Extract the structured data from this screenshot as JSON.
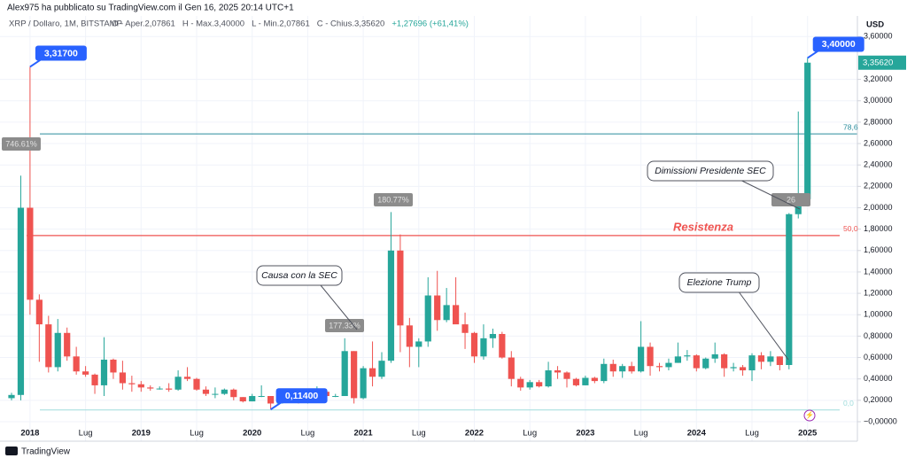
{
  "header": "Alex975 ha pubblicato su TradingView.com il Gen 16, 2025 20:14 UTC+1",
  "footer": "TradingView",
  "chart_data": {
    "type": "candlestick",
    "title": "XRP / Dollaro, 1M, BITSTAMP",
    "legend_items": [
      "O - Aper.2,07861",
      "H - Max.3,40000",
      "L - Min.2,07861",
      "C - Chius.3,35620",
      "+1,27696 (+61,41%)"
    ],
    "y_axis_label": "USD",
    "up_color": "#26a69a",
    "down_color": "#ef5350",
    "categories": [
      null,
      null,
      "2018",
      null,
      null,
      null,
      null,
      null,
      "Lug",
      null,
      null,
      null,
      null,
      null,
      "2019",
      null,
      null,
      null,
      null,
      null,
      "Lug",
      null,
      null,
      null,
      null,
      null,
      "2020",
      null,
      null,
      null,
      null,
      null,
      "Lug",
      null,
      null,
      null,
      null,
      null,
      "2021",
      null,
      null,
      null,
      null,
      null,
      "Lug",
      null,
      null,
      null,
      null,
      null,
      "2022",
      null,
      null,
      null,
      null,
      null,
      "Lug",
      null,
      null,
      null,
      null,
      null,
      "2023",
      null,
      null,
      null,
      null,
      null,
      "Lug",
      null,
      null,
      null,
      null,
      null,
      "2024",
      null,
      null,
      null,
      null,
      null,
      "Lug",
      null,
      null,
      null,
      null,
      null,
      "2025"
    ],
    "open": [
      0.22,
      0.25,
      2.0,
      1.14,
      0.91,
      0.51,
      0.83,
      0.61,
      0.47,
      0.44,
      0.34,
      0.58,
      0.46,
      0.36,
      0.35,
      0.32,
      0.31,
      0.31,
      0.3,
      0.42,
      0.4,
      0.3,
      0.26,
      0.26,
      0.3,
      0.23,
      0.19,
      0.24,
      0.24,
      0.17,
      0.21,
      0.2,
      0.18,
      0.25,
      0.28,
      0.24,
      0.24,
      0.66,
      0.22,
      0.5,
      0.42,
      0.57,
      1.6,
      0.9,
      0.7,
      0.75,
      1.18,
      0.95,
      1.09,
      0.91,
      0.83,
      0.61,
      0.78,
      0.82,
      0.6,
      0.4,
      0.32,
      0.37,
      0.33,
      0.48,
      0.46,
      0.4,
      0.34,
      0.41,
      0.38,
      0.54,
      0.47,
      0.52,
      0.47,
      0.7,
      0.52,
      0.51,
      0.55,
      0.61,
      0.62,
      0.5,
      0.59,
      0.63,
      0.5,
      0.51,
      0.48,
      0.62,
      0.56,
      0.61,
      0.53,
      1.94,
      2.08
    ],
    "high": [
      0.27,
      2.3,
      3.317,
      1.19,
      0.99,
      0.96,
      0.88,
      0.7,
      0.52,
      0.45,
      0.79,
      0.59,
      0.57,
      0.43,
      0.38,
      0.34,
      0.33,
      0.36,
      0.48,
      0.51,
      0.41,
      0.33,
      0.32,
      0.31,
      0.31,
      0.23,
      0.26,
      0.34,
      0.24,
      0.22,
      0.22,
      0.21,
      0.3,
      0.33,
      0.29,
      0.26,
      0.78,
      0.66,
      0.52,
      0.75,
      0.65,
      1.96,
      1.75,
      0.97,
      0.78,
      1.35,
      1.41,
      1.25,
      1.35,
      1.02,
      0.84,
      0.91,
      0.87,
      0.84,
      0.66,
      0.42,
      0.39,
      0.39,
      0.56,
      0.52,
      0.47,
      0.41,
      0.43,
      0.42,
      0.59,
      0.58,
      0.54,
      0.56,
      0.94,
      0.74,
      0.55,
      0.59,
      0.74,
      0.67,
      0.63,
      0.6,
      0.74,
      0.64,
      0.55,
      0.53,
      0.64,
      0.65,
      0.66,
      0.61,
      1.95,
      2.9,
      3.4
    ],
    "low": [
      0.2,
      0.2,
      1.0,
      0.56,
      0.46,
      0.47,
      0.57,
      0.44,
      0.42,
      0.26,
      0.24,
      0.4,
      0.3,
      0.28,
      0.28,
      0.29,
      0.3,
      0.28,
      0.29,
      0.38,
      0.29,
      0.24,
      0.22,
      0.25,
      0.2,
      0.18,
      0.19,
      0.23,
      0.114,
      0.17,
      0.18,
      0.17,
      0.17,
      0.24,
      0.22,
      0.23,
      0.24,
      0.17,
      0.21,
      0.33,
      0.4,
      0.55,
      0.65,
      0.51,
      0.51,
      0.7,
      0.85,
      0.93,
      0.92,
      0.68,
      0.55,
      0.58,
      0.69,
      0.59,
      0.33,
      0.29,
      0.3,
      0.32,
      0.32,
      0.4,
      0.32,
      0.33,
      0.34,
      0.36,
      0.36,
      0.42,
      0.41,
      0.45,
      0.46,
      0.43,
      0.47,
      0.48,
      0.55,
      0.57,
      0.47,
      0.49,
      0.55,
      0.42,
      0.47,
      0.43,
      0.38,
      0.49,
      0.52,
      0.48,
      0.49,
      1.9,
      2.08
    ],
    "close": [
      0.25,
      2.0,
      1.14,
      0.91,
      0.51,
      0.83,
      0.61,
      0.47,
      0.44,
      0.34,
      0.58,
      0.46,
      0.36,
      0.35,
      0.32,
      0.31,
      0.31,
      0.3,
      0.42,
      0.4,
      0.3,
      0.26,
      0.26,
      0.3,
      0.23,
      0.19,
      0.24,
      0.24,
      0.17,
      0.21,
      0.2,
      0.18,
      0.25,
      0.28,
      0.24,
      0.24,
      0.66,
      0.22,
      0.5,
      0.42,
      0.57,
      1.6,
      0.9,
      0.7,
      0.75,
      1.18,
      0.95,
      1.09,
      0.91,
      0.83,
      0.61,
      0.78,
      0.82,
      0.6,
      0.4,
      0.32,
      0.37,
      0.33,
      0.48,
      0.46,
      0.4,
      0.34,
      0.41,
      0.38,
      0.54,
      0.47,
      0.52,
      0.47,
      0.7,
      0.52,
      0.51,
      0.55,
      0.61,
      0.62,
      0.5,
      0.59,
      0.63,
      0.5,
      0.51,
      0.48,
      0.62,
      0.56,
      0.61,
      0.53,
      1.94,
      2.08,
      3.3562
    ],
    "ylim": [
      -0.116,
      3.793
    ],
    "yticks": [
      {
        "value": 0,
        "label": "−0,00000"
      },
      {
        "value": 0.2,
        "label": "0,20000"
      },
      {
        "value": 0.4,
        "label": "0,40000"
      },
      {
        "value": 0.6,
        "label": "0,60000"
      },
      {
        "value": 0.8,
        "label": "0,80000"
      },
      {
        "value": 1,
        "label": "1,00000"
      },
      {
        "value": 1.2,
        "label": "1,20000"
      },
      {
        "value": 1.4,
        "label": "1,40000"
      },
      {
        "value": 1.6,
        "label": "1,60000"
      },
      {
        "value": 1.8,
        "label": "1,80000"
      },
      {
        "value": 2,
        "label": "2,00000"
      },
      {
        "value": 2.2,
        "label": "2,20000"
      },
      {
        "value": 2.4,
        "label": "2,40000"
      },
      {
        "value": 2.6,
        "label": "2,60000"
      },
      {
        "value": 2.8,
        "label": "2,80000"
      },
      {
        "value": 3,
        "label": "3,00000"
      },
      {
        "value": 3.2,
        "label": "3,20000"
      },
      {
        "value": 3.6,
        "label": "3,60000"
      }
    ],
    "grid": true,
    "last_price": {
      "value": 3.3562,
      "label": "3,35620"
    },
    "hlines": [
      {
        "value": 2.69,
        "label": "78,6",
        "color": "#2a8c9c"
      },
      {
        "value": 1.74,
        "label": "50,0",
        "color": "#ef5350"
      },
      {
        "value": 0.11,
        "label": "0,0",
        "color": "#9fdcdc"
      }
    ],
    "resistance_label": "Resistenza",
    "price_callouts": [
      {
        "value": 3.317,
        "label": "3,31700"
      },
      {
        "value": 0.114,
        "label": "0,11400"
      },
      {
        "value": 3.4,
        "label": "3,40000"
      }
    ],
    "percent_labels": [
      "746.61%",
      "180.77%",
      "177.33%",
      "26"
    ],
    "notes": [
      "Dimissioni Presidente SEC",
      "Causa con la SEC",
      "Elezione Trump"
    ]
  }
}
